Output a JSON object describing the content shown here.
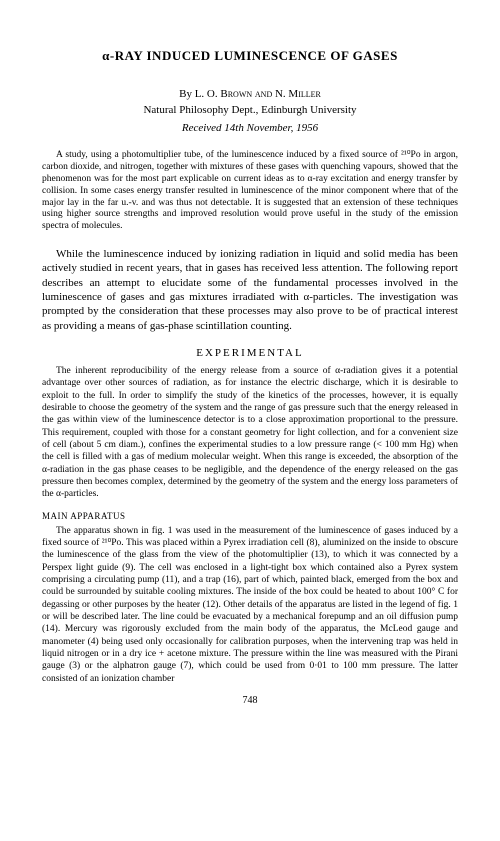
{
  "title": "α-RAY INDUCED LUMINESCENCE OF GASES",
  "byline_prefix": "By ",
  "authors": "L. O. Brown and N. Miller",
  "affiliation": "Natural Philosophy Dept., Edinburgh University",
  "received": "Received 14th November, 1956",
  "abstract": "A study, using a photomultiplier tube, of the luminescence induced by a fixed source of ²¹⁰Po in argon, carbon dioxide, and nitrogen, together with mixtures of these gases with quenching vapours, showed that the phenomenon was for the most part explicable on current ideas as to α-ray excitation and energy transfer by collision. In some cases energy transfer resulted in luminescence of the minor component where that of the major lay in the far u.-v. and was thus not detectable. It is suggested that an extension of these techniques using higher source strengths and improved resolution would prove useful in the study of the emission spectra of molecules.",
  "intro": "While the luminescence induced by ionizing radiation in liquid and solid media has been actively studied in recent years, that in gases has received less attention. The following report describes an attempt to elucidate some of the fundamental processes involved in the luminescence of gases and gas mixtures irradiated with α-particles. The investigation was prompted by the consideration that these processes may also prove to be of practical interest as providing a means of gas-phase scintillation counting.",
  "section_heading": "EXPERIMENTAL",
  "experimental_para": "The inherent reproducibility of the energy release from a source of α-radiation gives it a potential advantage over other sources of radiation, as for instance the electric discharge, which it is desirable to exploit to the full. In order to simplify the study of the kinetics of the processes, however, it is equally desirable to choose the geometry of the system and the range of gas pressure such that the energy released in the gas within view of the luminescence detector is to a close approximation proportional to the pressure. This requirement, coupled with those for a constant geometry for light collection, and for a convenient size of cell (about 5 cm diam.), confines the experimental studies to a low pressure range (< 100 mm Hg) when the cell is filled with a gas of medium molecular weight. When this range is exceeded, the absorption of the α-radiation in the gas phase ceases to be negligible, and the dependence of the energy released on the gas pressure then becomes complex, determined by the geometry of the system and the energy loss parameters of the α-particles.",
  "subsection": "MAIN APPARATUS",
  "apparatus_para": "The apparatus shown in fig. 1 was used in the measurement of the luminescence of gases induced by a fixed source of ²¹⁰Po. This was placed within a Pyrex irradiation cell (8), aluminized on the inside to obscure the luminescence of the glass from the view of the photomultiplier (13), to which it was connected by a Perspex light guide (9). The cell was enclosed in a light-tight box which contained also a Pyrex system comprising a circulating pump (11), and a trap (16), part of which, painted black, emerged from the box and could be surrounded by suitable cooling mixtures. The inside of the box could be heated to about 100° C for degassing or other purposes by the heater (12). Other details of the apparatus are listed in the legend of fig. 1 or will be described later. The line could be evacuated by a mechanical forepump and an oil diffusion pump (14). Mercury was rigorously excluded from the main body of the apparatus, the McLeod gauge and manometer (4) being used only occasionally for calibration purposes, when the intervening trap was held in liquid nitrogen or in a dry ice + acetone mixture. The pressure within the line was measured with the Pirani gauge (3) or the alphatron gauge (7), which could be used from 0·01 to 100 mm pressure. The latter consisted of an ionization chamber",
  "page_number": "748"
}
